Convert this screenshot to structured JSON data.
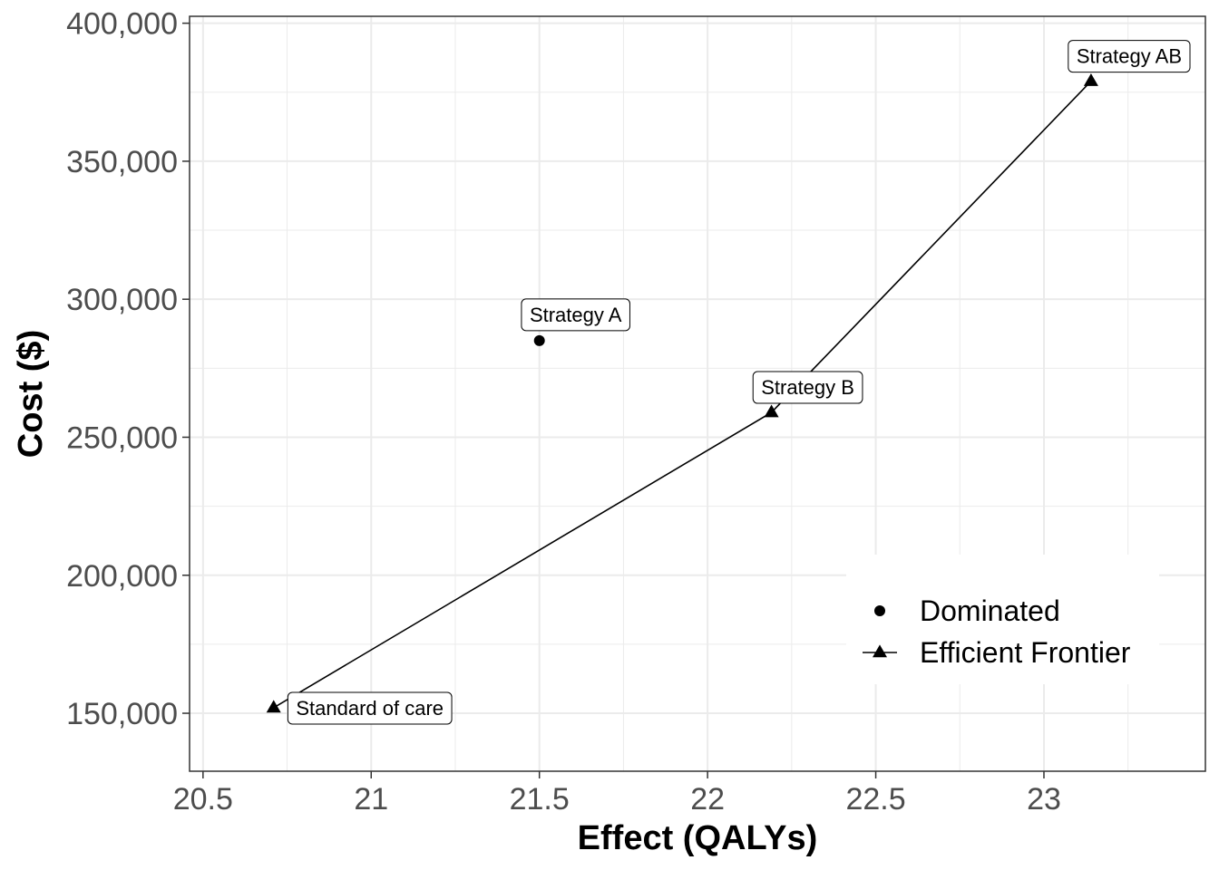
{
  "chart_data": {
    "type": "scatter",
    "xlabel": "Effect (QALYs)",
    "ylabel": "Cost ($)",
    "xlim": [
      20.46,
      23.48
    ],
    "ylim": [
      129000,
      402500
    ],
    "x_ticks": [
      20.5,
      21,
      21.5,
      22,
      22.5,
      23
    ],
    "x_tick_labels": [
      "20.5",
      "21",
      "21.5",
      "22",
      "22.5",
      "23"
    ],
    "y_ticks": [
      150000,
      200000,
      250000,
      300000,
      350000,
      400000
    ],
    "y_tick_labels": [
      "150,000",
      "200,000",
      "250,000",
      "300,000",
      "350,000",
      "400,000"
    ],
    "grid": true,
    "legend_position": "bottom-right",
    "points": [
      {
        "label": "Standard of care",
        "x": 20.71,
        "y": 152000,
        "status": "Efficient Frontier"
      },
      {
        "label": "Strategy A",
        "x": 21.5,
        "y": 285000,
        "status": "Dominated"
      },
      {
        "label": "Strategy B",
        "x": 22.19,
        "y": 259000,
        "status": "Efficient Frontier"
      },
      {
        "label": "Strategy AB",
        "x": 23.14,
        "y": 379000,
        "status": "Efficient Frontier"
      }
    ],
    "legend": [
      {
        "name": "Dominated",
        "shape": "circle"
      },
      {
        "name": "Efficient Frontier",
        "shape": "triangle"
      }
    ],
    "frontier_line": true,
    "colors": {
      "marks": "#000000",
      "grid": "#ebebeb",
      "panel_border": "#333333",
      "tick_text": "#4d4d4d"
    }
  }
}
